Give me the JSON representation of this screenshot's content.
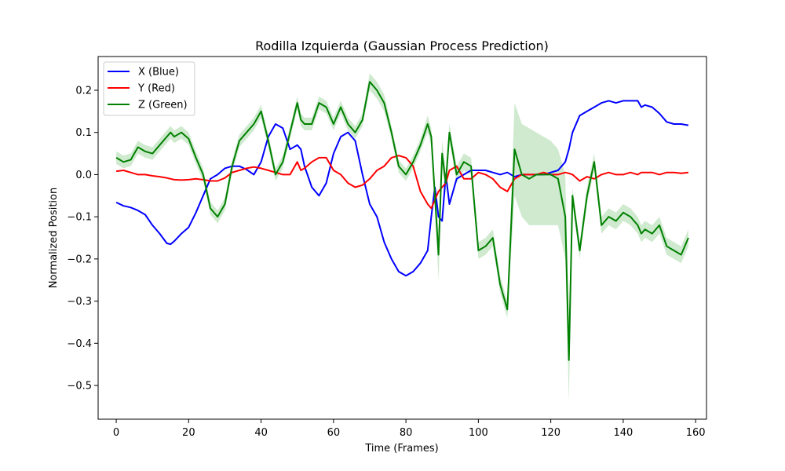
{
  "chart_data": {
    "type": "line",
    "title": "Rodilla Izquierda (Gaussian Process Prediction)",
    "xlabel": "Time (Frames)",
    "ylabel": "Normalized Position",
    "xlim": [
      -5,
      163
    ],
    "ylim": [
      -0.58,
      0.28
    ],
    "xticks": [
      0,
      20,
      40,
      60,
      80,
      100,
      120,
      140,
      160
    ],
    "xtick_labels": [
      "0",
      "20",
      "40",
      "60",
      "80",
      "100",
      "120",
      "140",
      "160"
    ],
    "yticks": [
      0.2,
      0.1,
      0.0,
      -0.1,
      -0.2,
      -0.3,
      -0.4,
      -0.5
    ],
    "ytick_labels": [
      "0.2",
      "0.1",
      "0.0",
      "−0.1",
      "−0.2",
      "−0.3",
      "−0.4",
      "−0.5"
    ],
    "grid": false,
    "legend_position": "top-left",
    "x": [
      0,
      2,
      4,
      6,
      8,
      10,
      12,
      14,
      15,
      16,
      18,
      20,
      22,
      24,
      26,
      28,
      30,
      32,
      34,
      36,
      38,
      40,
      42,
      44,
      46,
      48,
      50,
      51,
      52,
      54,
      56,
      58,
      60,
      62,
      64,
      66,
      68,
      70,
      72,
      74,
      76,
      78,
      80,
      82,
      84,
      86,
      87,
      88,
      89,
      90,
      91,
      92,
      94,
      96,
      98,
      100,
      102,
      104,
      106,
      108,
      110,
      112,
      114,
      116,
      118,
      120,
      122,
      124,
      125,
      126,
      128,
      130,
      132,
      134,
      136,
      138,
      140,
      142,
      144,
      145,
      146,
      148,
      150,
      152,
      154,
      156,
      158
    ],
    "series": [
      {
        "name": "X (Blue)",
        "color": "#0000ff",
        "values": [
          -0.066,
          -0.074,
          -0.078,
          -0.085,
          -0.095,
          -0.12,
          -0.14,
          -0.163,
          -0.165,
          -0.158,
          -0.14,
          -0.125,
          -0.09,
          -0.05,
          -0.01,
          0.0,
          0.015,
          0.02,
          0.02,
          0.012,
          0.0,
          0.03,
          0.09,
          0.12,
          0.11,
          0.06,
          0.07,
          0.06,
          0.02,
          -0.03,
          -0.05,
          -0.02,
          0.05,
          0.09,
          0.1,
          0.08,
          0.0,
          -0.07,
          -0.1,
          -0.16,
          -0.2,
          -0.23,
          -0.24,
          -0.23,
          -0.21,
          -0.18,
          -0.1,
          -0.03,
          -0.1,
          -0.11,
          0.0,
          -0.07,
          -0.01,
          0.0,
          0.01,
          0.01,
          0.01,
          0.005,
          0.0,
          0.005,
          -0.005,
          0.0,
          0.0,
          0.0,
          0.0,
          0.005,
          0.01,
          0.03,
          0.06,
          0.1,
          0.14,
          0.15,
          0.16,
          0.17,
          0.175,
          0.17,
          0.175,
          0.175,
          0.175,
          0.16,
          0.165,
          0.16,
          0.145,
          0.125,
          0.12,
          0.12,
          0.117
        ]
      },
      {
        "name": "Y (Red)",
        "color": "#ff0000",
        "values": [
          0.008,
          0.01,
          0.005,
          0.0,
          0.0,
          -0.003,
          -0.005,
          -0.008,
          -0.01,
          -0.012,
          -0.013,
          -0.012,
          -0.01,
          -0.012,
          -0.015,
          -0.015,
          -0.008,
          0.005,
          0.01,
          0.015,
          0.018,
          0.015,
          0.01,
          0.005,
          0.0,
          0.0,
          0.03,
          0.01,
          0.015,
          0.03,
          0.04,
          0.04,
          0.01,
          0.0,
          -0.02,
          -0.03,
          -0.025,
          -0.01,
          0.01,
          0.02,
          0.04,
          0.045,
          0.04,
          0.02,
          -0.04,
          -0.07,
          -0.08,
          -0.06,
          -0.04,
          -0.03,
          -0.02,
          0.01,
          0.02,
          -0.01,
          -0.01,
          0.005,
          0.0,
          -0.01,
          -0.03,
          -0.04,
          -0.01,
          0.0,
          0.0,
          0.0,
          0.005,
          0.0,
          0.0,
          0.005,
          0.003,
          0.0,
          -0.015,
          -0.005,
          -0.01,
          0.0,
          0.005,
          0.0,
          0.0,
          0.005,
          0.0,
          0.005,
          0.005,
          0.005,
          0.0,
          0.005,
          0.005,
          0.003,
          0.005
        ]
      },
      {
        "name": "Z (Green)",
        "color": "#008000",
        "band_color": "#a8d8a8",
        "values": [
          0.04,
          0.03,
          0.035,
          0.065,
          0.055,
          0.05,
          0.07,
          0.09,
          0.1,
          0.09,
          0.1,
          0.085,
          0.04,
          0.0,
          -0.08,
          -0.1,
          -0.07,
          0.02,
          0.08,
          0.1,
          0.12,
          0.15,
          0.08,
          0.0,
          0.03,
          0.1,
          0.17,
          0.13,
          0.12,
          0.12,
          0.17,
          0.16,
          0.12,
          0.16,
          0.12,
          0.1,
          0.13,
          0.22,
          0.2,
          0.17,
          0.1,
          0.02,
          0.0,
          0.03,
          0.07,
          0.12,
          0.09,
          -0.05,
          -0.19,
          0.05,
          -0.02,
          0.1,
          0.0,
          0.03,
          0.02,
          -0.18,
          -0.17,
          -0.15,
          -0.26,
          -0.32,
          0.06,
          0.0,
          -0.01,
          0.0,
          0.0,
          0.0,
          -0.01,
          -0.1,
          -0.44,
          -0.05,
          -0.18,
          -0.05,
          0.03,
          -0.12,
          -0.1,
          -0.11,
          -0.09,
          -0.1,
          -0.12,
          -0.14,
          -0.13,
          -0.14,
          -0.12,
          -0.17,
          -0.18,
          -0.19,
          -0.15
        ],
        "lower": [
          0.025,
          0.015,
          0.02,
          0.05,
          0.04,
          0.035,
          0.055,
          0.075,
          0.085,
          0.075,
          0.085,
          0.07,
          0.025,
          -0.015,
          -0.095,
          -0.115,
          -0.085,
          0.005,
          0.065,
          0.085,
          0.105,
          0.135,
          0.065,
          -0.015,
          0.015,
          0.085,
          0.155,
          0.115,
          0.105,
          0.105,
          0.155,
          0.145,
          0.105,
          0.145,
          0.105,
          0.085,
          0.115,
          0.2,
          0.18,
          0.15,
          0.085,
          0.005,
          -0.015,
          0.015,
          0.055,
          0.1,
          0.07,
          -0.07,
          -0.25,
          0.02,
          -0.05,
          0.08,
          -0.02,
          0.01,
          0.0,
          -0.2,
          -0.19,
          -0.17,
          -0.28,
          -0.34,
          -0.05,
          -0.1,
          -0.12,
          -0.12,
          -0.12,
          -0.12,
          -0.12,
          -0.2,
          -0.54,
          -0.07,
          -0.2,
          -0.07,
          0.01,
          -0.14,
          -0.12,
          -0.13,
          -0.11,
          -0.12,
          -0.14,
          -0.16,
          -0.15,
          -0.16,
          -0.14,
          -0.19,
          -0.2,
          -0.21,
          -0.17
        ],
        "upper": [
          0.055,
          0.045,
          0.05,
          0.08,
          0.07,
          0.065,
          0.085,
          0.105,
          0.115,
          0.105,
          0.115,
          0.1,
          0.055,
          0.015,
          -0.065,
          -0.085,
          -0.055,
          0.035,
          0.095,
          0.115,
          0.135,
          0.165,
          0.095,
          0.015,
          0.045,
          0.115,
          0.185,
          0.145,
          0.135,
          0.135,
          0.185,
          0.175,
          0.135,
          0.175,
          0.135,
          0.115,
          0.145,
          0.24,
          0.22,
          0.19,
          0.115,
          0.035,
          0.015,
          0.045,
          0.085,
          0.14,
          0.11,
          -0.03,
          -0.13,
          0.08,
          0.01,
          0.12,
          0.02,
          0.05,
          0.04,
          -0.16,
          -0.15,
          -0.13,
          -0.24,
          -0.3,
          0.17,
          0.12,
          0.11,
          0.1,
          0.09,
          0.08,
          0.06,
          0.0,
          -0.34,
          -0.03,
          -0.16,
          -0.03,
          0.05,
          -0.1,
          -0.08,
          -0.09,
          -0.07,
          -0.08,
          -0.1,
          -0.12,
          -0.11,
          -0.12,
          -0.1,
          -0.15,
          -0.16,
          -0.17,
          -0.13
        ]
      }
    ]
  }
}
